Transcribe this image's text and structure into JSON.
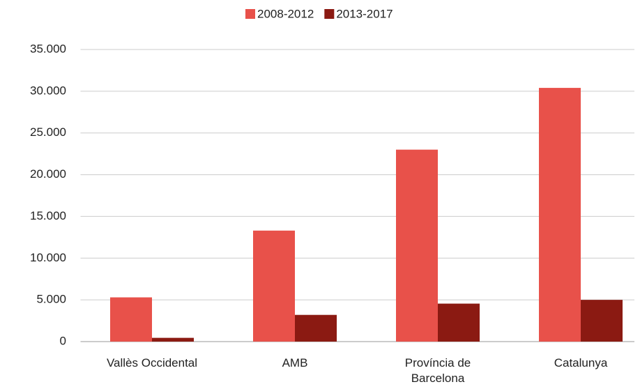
{
  "chart_data": {
    "type": "bar",
    "categories": [
      "Vallès Occidental",
      "AMB",
      "Província de Barcelona",
      "Catalunya"
    ],
    "series": [
      {
        "name": "2008-2012",
        "color": "#e8514a",
        "values": [
          5300,
          13300,
          23000,
          30400
        ]
      },
      {
        "name": "2013-2017",
        "color": "#8b1a12",
        "values": [
          450,
          3200,
          4550,
          5000
        ]
      }
    ],
    "ylim": [
      0,
      35000
    ],
    "yticks": [
      0,
      {
        "value": 5000,
        "label": "5.000"
      },
      {
        "value": 10000,
        "label": "10.000"
      },
      {
        "value": 15000,
        "label": "15.000"
      },
      {
        "value": 20000,
        "label": "20.000"
      },
      {
        "value": 25000,
        "label": "25.000"
      },
      {
        "value": 30000,
        "label": "30.000"
      },
      {
        "value": 35000,
        "label": "35.000"
      }
    ],
    "grid": true,
    "legend": "top"
  }
}
